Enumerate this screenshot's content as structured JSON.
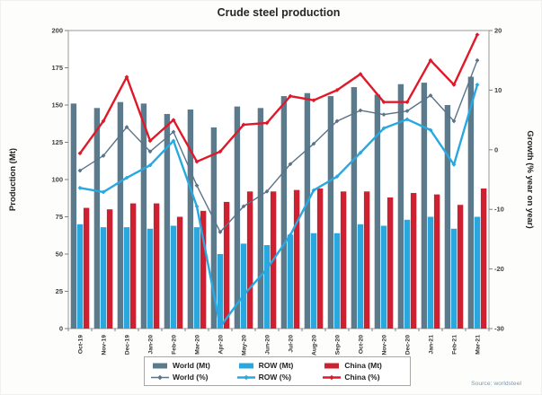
{
  "title": "Crude steel production",
  "source": "Source: worldsteel",
  "chart_data": {
    "type": "bar+line combo",
    "title": "Crude steel production",
    "categories": [
      "Oct-19",
      "Nov-19",
      "Dec-19",
      "Jan-20",
      "Feb-20",
      "Mar-20",
      "Apr-20",
      "May-20",
      "Jun-20",
      "Jul-20",
      "Aug-20",
      "Sep-20",
      "Oct-20",
      "Nov-20",
      "Dec-20",
      "Jan-21",
      "Feb-21",
      "Mar-21"
    ],
    "left_axis": {
      "label": "Production (Mt)",
      "min": 0,
      "max": 200,
      "ticks": [
        0,
        25,
        50,
        75,
        100,
        125,
        150,
        175,
        200
      ]
    },
    "right_axis": {
      "label": "Growth (% year on year)",
      "min": -30,
      "max": 20,
      "ticks": [
        -30,
        -20,
        -10,
        0,
        10,
        20
      ]
    },
    "grid": false,
    "legend_position": "bottom",
    "series": [
      {
        "name": "World (Mt)",
        "type": "bar",
        "axis": "left",
        "color": "#5b7b8d",
        "values": [
          151,
          148,
          152,
          151,
          144,
          147,
          135,
          149,
          148,
          156,
          158,
          156,
          162,
          157,
          164,
          165,
          150,
          169
        ]
      },
      {
        "name": "ROW (Mt)",
        "type": "bar",
        "axis": "left",
        "color": "#29a8e0",
        "values": [
          70,
          68,
          68,
          67,
          69,
          68,
          50,
          57,
          56,
          63,
          64,
          64,
          70,
          69,
          73,
          75,
          67,
          75
        ]
      },
      {
        "name": "China (Mt)",
        "type": "bar",
        "axis": "left",
        "color": "#cd2030",
        "values": [
          81,
          80,
          84,
          84,
          75,
          79,
          85,
          92,
          92,
          93,
          94,
          92,
          92,
          88,
          91,
          90,
          83,
          94
        ]
      },
      {
        "name": "World (%)",
        "type": "line",
        "axis": "right",
        "color": "#5a7389",
        "width": 1.4,
        "values": [
          -3.5,
          -1.0,
          3.8,
          -0.3,
          3.0,
          -6.0,
          -13.8,
          -9.5,
          -7.0,
          -2.4,
          1.0,
          4.8,
          6.6,
          5.9,
          6.5,
          9.1,
          4.8,
          15.0
        ]
      },
      {
        "name": "ROW (%)",
        "type": "line",
        "axis": "right",
        "color": "#29a8e0",
        "width": 2.4,
        "values": [
          -6.4,
          -7.1,
          -4.7,
          -2.6,
          1.5,
          -9.5,
          -29.7,
          -24.4,
          -20.0,
          -14.3,
          -6.8,
          -4.5,
          -0.5,
          3.6,
          5.1,
          3.3,
          -2.5,
          10.9
        ]
      },
      {
        "name": "China (%)",
        "type": "line",
        "axis": "right",
        "color": "#e0192a",
        "width": 2.4,
        "values": [
          -0.6,
          4.8,
          12.2,
          1.5,
          5.0,
          -2.0,
          -0.3,
          4.2,
          4.5,
          9.0,
          8.3,
          10.0,
          12.7,
          8.0,
          8.0,
          15.0,
          10.9,
          19.3
        ]
      }
    ]
  }
}
